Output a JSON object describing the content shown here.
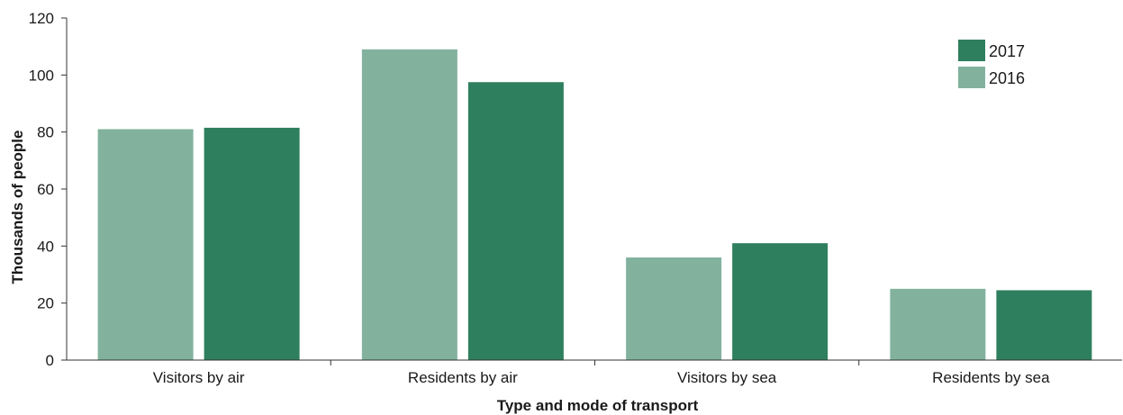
{
  "chart_data": {
    "type": "bar",
    "title": "",
    "xlabel": "Type and mode of transport",
    "ylabel": "Thousands of people",
    "ylim": [
      0,
      120
    ],
    "yticks": [
      0,
      20,
      40,
      60,
      80,
      100,
      120
    ],
    "categories": [
      "Visitors by air",
      "Residents by air",
      "Visitors by sea",
      "Residents by sea"
    ],
    "series": [
      {
        "name": "2016",
        "color": "#82b29e",
        "values": [
          81,
          109,
          36,
          25
        ]
      },
      {
        "name": "2017",
        "color": "#2e7f5e",
        "values": [
          81.5,
          97.5,
          41,
          24.5
        ]
      }
    ],
    "legend": {
      "position": "top-right",
      "order": [
        "2017",
        "2016"
      ]
    },
    "grid": false
  }
}
